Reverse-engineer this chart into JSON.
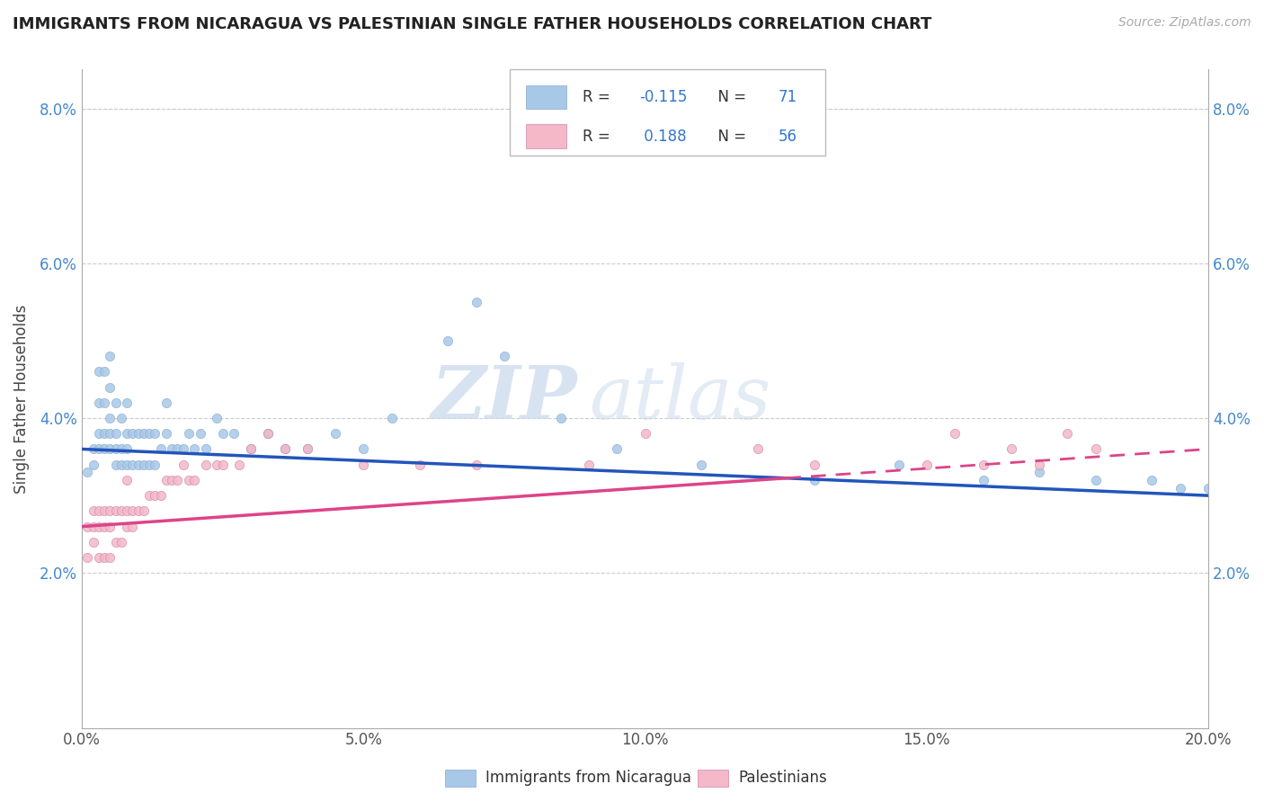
{
  "title": "IMMIGRANTS FROM NICARAGUA VS PALESTINIAN SINGLE FATHER HOUSEHOLDS CORRELATION CHART",
  "source": "Source: ZipAtlas.com",
  "ylabel": "Single Father Households",
  "legend_label1": "Immigrants from Nicaragua",
  "legend_label2": "Palestinians",
  "R1": -0.115,
  "N1": 71,
  "R2": 0.188,
  "N2": 56,
  "color1": "#a8c8e8",
  "color2": "#f4b8c8",
  "line_color1": "#2255bb",
  "line_color2": "#dd4488",
  "watermark_zip": "ZIP",
  "watermark_atlas": "atlas",
  "grid_color": "#cccccc",
  "xlim": [
    0,
    0.2
  ],
  "ylim": [
    0.0,
    0.085
  ],
  "yticks": [
    0.02,
    0.04,
    0.06,
    0.08
  ],
  "ytick_labels": [
    "2.0%",
    "4.0%",
    "6.0%",
    "8.0%"
  ],
  "xticks": [
    0.0,
    0.05,
    0.1,
    0.15,
    0.2
  ],
  "xtick_labels": [
    "0.0%",
    "5.0%",
    "10.0%",
    "15.0%",
    "20.0%"
  ],
  "line1_x0": 0.0,
  "line1_y0": 0.036,
  "line1_x1": 0.2,
  "line1_y1": 0.03,
  "line2_x0": 0.0,
  "line2_y0": 0.026,
  "line2_x1": 0.2,
  "line2_y1": 0.036,
  "scatter1_x": [
    0.001,
    0.002,
    0.002,
    0.003,
    0.003,
    0.003,
    0.003,
    0.004,
    0.004,
    0.004,
    0.004,
    0.005,
    0.005,
    0.005,
    0.005,
    0.005,
    0.006,
    0.006,
    0.006,
    0.006,
    0.007,
    0.007,
    0.007,
    0.008,
    0.008,
    0.008,
    0.008,
    0.009,
    0.009,
    0.01,
    0.01,
    0.011,
    0.011,
    0.012,
    0.012,
    0.013,
    0.013,
    0.014,
    0.015,
    0.015,
    0.016,
    0.017,
    0.018,
    0.019,
    0.02,
    0.021,
    0.022,
    0.024,
    0.025,
    0.027,
    0.03,
    0.033,
    0.036,
    0.04,
    0.045,
    0.05,
    0.055,
    0.065,
    0.07,
    0.075,
    0.085,
    0.095,
    0.11,
    0.13,
    0.145,
    0.16,
    0.17,
    0.18,
    0.19,
    0.195,
    0.2
  ],
  "scatter1_y": [
    0.033,
    0.034,
    0.036,
    0.036,
    0.038,
    0.042,
    0.046,
    0.036,
    0.038,
    0.042,
    0.046,
    0.036,
    0.038,
    0.04,
    0.044,
    0.048,
    0.034,
    0.036,
    0.038,
    0.042,
    0.034,
    0.036,
    0.04,
    0.034,
    0.036,
    0.038,
    0.042,
    0.034,
    0.038,
    0.034,
    0.038,
    0.034,
    0.038,
    0.034,
    0.038,
    0.034,
    0.038,
    0.036,
    0.038,
    0.042,
    0.036,
    0.036,
    0.036,
    0.038,
    0.036,
    0.038,
    0.036,
    0.04,
    0.038,
    0.038,
    0.036,
    0.038,
    0.036,
    0.036,
    0.038,
    0.036,
    0.04,
    0.05,
    0.055,
    0.048,
    0.04,
    0.036,
    0.034,
    0.032,
    0.034,
    0.032,
    0.033,
    0.032,
    0.032,
    0.031,
    0.031
  ],
  "scatter2_x": [
    0.001,
    0.001,
    0.002,
    0.002,
    0.002,
    0.003,
    0.003,
    0.003,
    0.004,
    0.004,
    0.004,
    0.005,
    0.005,
    0.005,
    0.006,
    0.006,
    0.007,
    0.007,
    0.008,
    0.008,
    0.008,
    0.009,
    0.009,
    0.01,
    0.011,
    0.012,
    0.013,
    0.014,
    0.015,
    0.016,
    0.017,
    0.018,
    0.019,
    0.02,
    0.022,
    0.024,
    0.025,
    0.028,
    0.03,
    0.033,
    0.036,
    0.04,
    0.05,
    0.06,
    0.07,
    0.09,
    0.1,
    0.12,
    0.13,
    0.15,
    0.155,
    0.16,
    0.165,
    0.17,
    0.175,
    0.18
  ],
  "scatter2_y": [
    0.022,
    0.026,
    0.024,
    0.026,
    0.028,
    0.022,
    0.026,
    0.028,
    0.022,
    0.026,
    0.028,
    0.022,
    0.026,
    0.028,
    0.024,
    0.028,
    0.024,
    0.028,
    0.026,
    0.028,
    0.032,
    0.026,
    0.028,
    0.028,
    0.028,
    0.03,
    0.03,
    0.03,
    0.032,
    0.032,
    0.032,
    0.034,
    0.032,
    0.032,
    0.034,
    0.034,
    0.034,
    0.034,
    0.036,
    0.038,
    0.036,
    0.036,
    0.034,
    0.034,
    0.034,
    0.034,
    0.038,
    0.036,
    0.034,
    0.034,
    0.038,
    0.034,
    0.036,
    0.034,
    0.038,
    0.036
  ]
}
